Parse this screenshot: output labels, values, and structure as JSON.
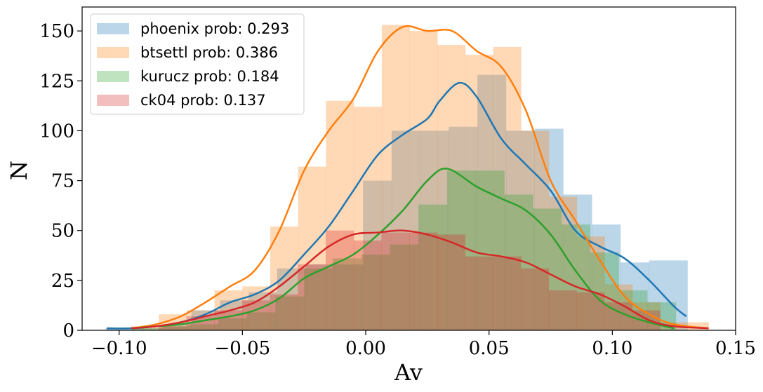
{
  "chart_data": {
    "type": "histogram",
    "xlabel": "Av",
    "ylabel": "N",
    "xlim": [
      -0.115,
      0.15
    ],
    "ylim": [
      0,
      162
    ],
    "x_ticks": [
      {
        "value": -0.1,
        "label": "−0.10"
      },
      {
        "value": -0.05,
        "label": "−0.05"
      },
      {
        "value": 0.0,
        "label": "0.00"
      },
      {
        "value": 0.05,
        "label": "0.05"
      },
      {
        "value": 0.1,
        "label": "0.10"
      },
      {
        "value": 0.15,
        "label": "0.15"
      }
    ],
    "y_ticks": [
      {
        "value": 0,
        "label": "0"
      },
      {
        "value": 25,
        "label": "25"
      },
      {
        "value": 50,
        "label": "50"
      },
      {
        "value": 75,
        "label": "75"
      },
      {
        "value": 100,
        "label": "100"
      },
      {
        "value": 125,
        "label": "125"
      },
      {
        "value": 150,
        "label": "150"
      }
    ],
    "grid": false,
    "legend_position": "top-left",
    "series": [
      {
        "name": "phoenix prob: 0.293",
        "color": "#1f77b4",
        "bins": {
          "edges": [
            -0.1055,
            -0.0939,
            -0.0823,
            -0.0707,
            -0.0591,
            -0.0475,
            -0.0359,
            -0.0243,
            -0.0127,
            -0.0011,
            0.0105,
            0.0221,
            0.0337,
            0.0453,
            0.0569,
            0.0685,
            0.0801,
            0.0917,
            0.1033,
            0.1149,
            0.1305
          ],
          "counts": [
            1,
            1,
            3,
            10,
            15,
            19,
            31,
            33,
            33,
            75,
            100,
            100,
            102,
            128,
            100,
            101,
            68,
            53,
            34,
            35,
            12
          ]
        },
        "kde": {
          "x": [
            -0.105,
            -0.095,
            -0.085,
            -0.075,
            -0.065,
            -0.055,
            -0.045,
            -0.035,
            -0.025,
            -0.015,
            -0.005,
            0.005,
            0.015,
            0.025,
            0.03,
            0.038,
            0.045,
            0.055,
            0.065,
            0.075,
            0.085,
            0.095,
            0.105,
            0.115,
            0.125,
            0.13
          ],
          "y": [
            1,
            1,
            2,
            4,
            8,
            14,
            18,
            25,
            38,
            52,
            70,
            88,
            98,
            106,
            115,
            124,
            117,
            96,
            83,
            70,
            50,
            42,
            36,
            25,
            12,
            7
          ]
        }
      },
      {
        "name": "btsettl prob: 0.386",
        "color": "#ff7f0e",
        "bins": {
          "edges": [
            -0.0952,
            -0.0839,
            -0.0726,
            -0.0613,
            -0.05,
            -0.0387,
            -0.0274,
            -0.0161,
            -0.0048,
            0.0065,
            0.0178,
            0.0291,
            0.0404,
            0.0517,
            0.063,
            0.0743,
            0.0856,
            0.0969,
            0.1082,
            0.1195,
            0.1391
          ],
          "counts": [
            2,
            8,
            10,
            20,
            22,
            52,
            82,
            115,
            112,
            153,
            150,
            143,
            138,
            142,
            100,
            67,
            47,
            23,
            14,
            4,
            1
          ]
        },
        "kde": {
          "x": [
            -0.095,
            -0.085,
            -0.075,
            -0.065,
            -0.055,
            -0.045,
            -0.035,
            -0.025,
            -0.015,
            -0.005,
            0.005,
            0.015,
            0.025,
            0.035,
            0.045,
            0.055,
            0.065,
            0.075,
            0.085,
            0.095,
            0.105,
            0.115,
            0.125,
            0.139
          ],
          "y": [
            1,
            3,
            7,
            14,
            22,
            30,
            50,
            80,
            100,
            116,
            140,
            152,
            150,
            150,
            140,
            132,
            110,
            75,
            55,
            35,
            17,
            8,
            3,
            1
          ]
        }
      },
      {
        "name": "kurucz prob: 0.184",
        "color": "#2ca02c",
        "bins": {
          "edges": [
            -0.0946,
            -0.083,
            -0.0714,
            -0.0598,
            -0.0482,
            -0.0366,
            -0.025,
            -0.0134,
            -0.0018,
            0.0098,
            0.0214,
            0.033,
            0.0446,
            0.0562,
            0.0678,
            0.0794,
            0.091,
            0.1026,
            0.1142,
            0.1258
          ],
          "counts": [
            1,
            2,
            3,
            6,
            9,
            17,
            31,
            36,
            38,
            43,
            63,
            80,
            80,
            68,
            61,
            53,
            39,
            20,
            14,
            4
          ]
        },
        "kde": {
          "x": [
            -0.095,
            -0.085,
            -0.075,
            -0.065,
            -0.055,
            -0.045,
            -0.035,
            -0.025,
            -0.015,
            -0.005,
            0.005,
            0.015,
            0.025,
            0.033,
            0.045,
            0.055,
            0.065,
            0.075,
            0.085,
            0.095,
            0.105,
            0.115,
            0.125
          ],
          "y": [
            1,
            2,
            3,
            5,
            7,
            10,
            16,
            26,
            32,
            38,
            48,
            60,
            75,
            81,
            72,
            66,
            60,
            48,
            30,
            15,
            8,
            4,
            1
          ]
        }
      },
      {
        "name": "ck04 prob: 0.137",
        "color": "#d62728",
        "bins": {
          "edges": [
            -0.084,
            -0.0727,
            -0.0614,
            -0.0501,
            -0.0388,
            -0.0275,
            -0.0162,
            -0.0049,
            0.0064,
            0.0177,
            0.029,
            0.0403,
            0.0516,
            0.0629,
            0.0742,
            0.0855,
            0.0968,
            0.1081,
            0.1194
          ],
          "counts": [
            2,
            7,
            10,
            15,
            18,
            33,
            50,
            45,
            49,
            49,
            48,
            37,
            37,
            31,
            20,
            19,
            14,
            10,
            3
          ]
        },
        "kde": {
          "x": [
            -0.095,
            -0.085,
            -0.075,
            -0.065,
            -0.055,
            -0.045,
            -0.035,
            -0.025,
            -0.015,
            -0.005,
            0.005,
            0.015,
            0.025,
            0.035,
            0.045,
            0.055,
            0.065,
            0.075,
            0.085,
            0.095,
            0.105,
            0.115,
            0.125,
            0.139
          ],
          "y": [
            1,
            2,
            4,
            7,
            10,
            14,
            22,
            32,
            42,
            48,
            49,
            50,
            48,
            44,
            39,
            37,
            34,
            28,
            22,
            18,
            12,
            5,
            2,
            1
          ]
        }
      }
    ]
  }
}
